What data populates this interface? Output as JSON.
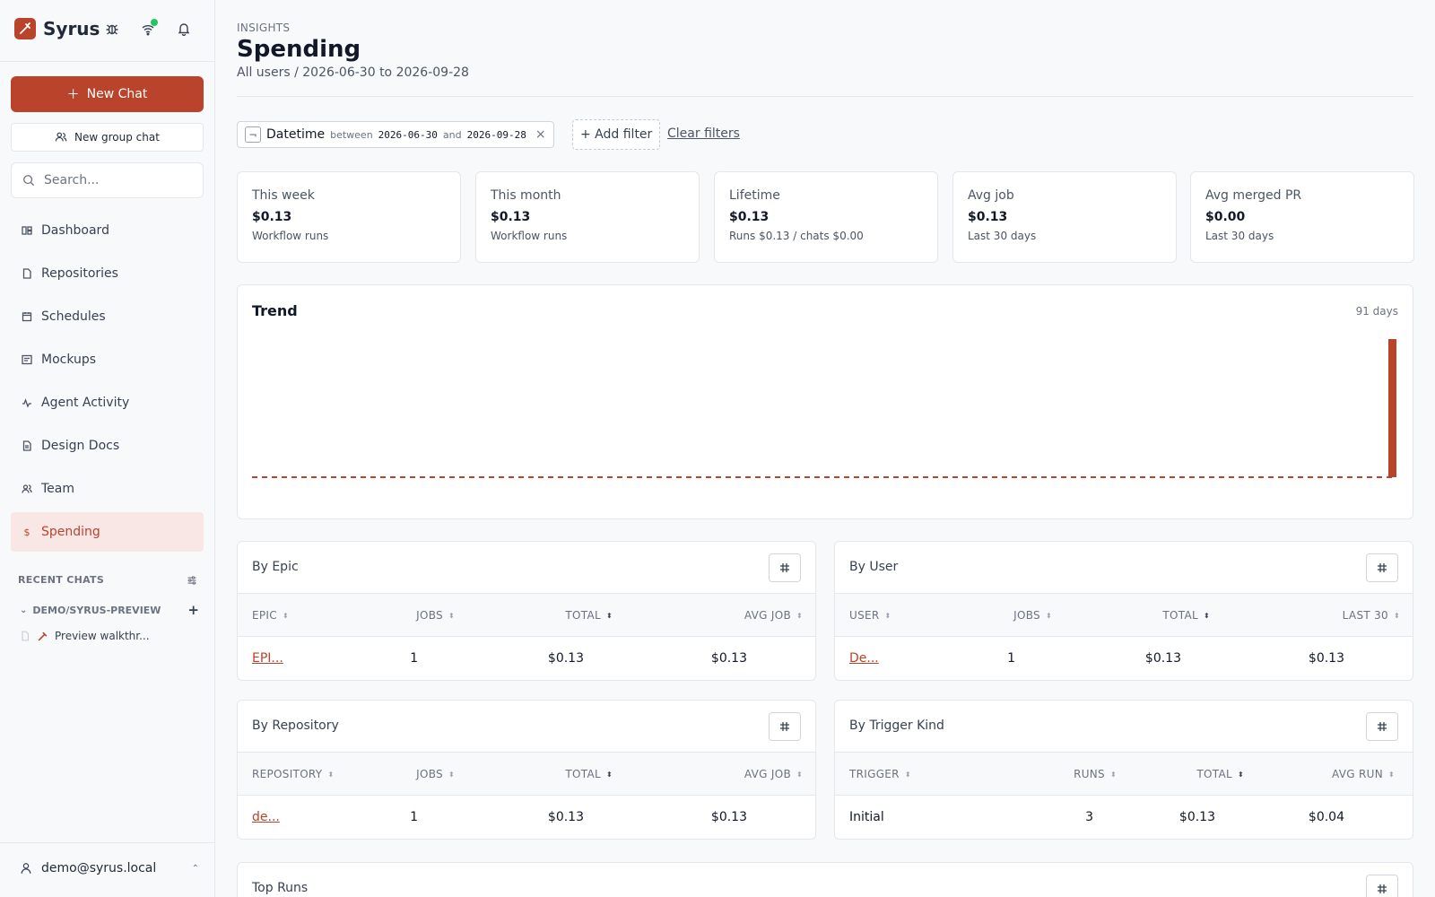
{
  "app": {
    "name": "Syrus"
  },
  "sidebar": {
    "new_chat_label": "New Chat",
    "new_group_chat_label": "New group chat",
    "search_placeholder": "Search...",
    "items": [
      {
        "label": "Dashboard",
        "icon": "dashboard-icon"
      },
      {
        "label": "Repositories",
        "icon": "file-icon"
      },
      {
        "label": "Schedules",
        "icon": "calendar-icon"
      },
      {
        "label": "Mockups",
        "icon": "mockup-icon"
      },
      {
        "label": "Agent Activity",
        "icon": "activity-icon"
      },
      {
        "label": "Design Docs",
        "icon": "document-icon"
      },
      {
        "label": "Team",
        "icon": "users-icon"
      },
      {
        "label": "Spending",
        "icon": "dollar-icon",
        "active": true
      }
    ],
    "recent_chats_label": "RECENT CHATS",
    "repo_group_label": "DEMO/SYRUS-PREVIEW",
    "chats": [
      {
        "label": "Preview walkthr..."
      }
    ],
    "user_email": "demo@syrus.local"
  },
  "header": {
    "eyebrow": "INSIGHTS",
    "title": "Spending",
    "subtitle": "All users / 2026-06-30 to 2026-09-28"
  },
  "filters": {
    "chip": {
      "field": "Datetime",
      "op1": "between",
      "start": "2026-06-30",
      "op2": "and",
      "end": "2026-09-28"
    },
    "add_label": "+ Add filter",
    "clear_label": "Clear filters"
  },
  "stats": [
    {
      "label": "This week",
      "value": "$0.13",
      "sub": "Workflow runs"
    },
    {
      "label": "This month",
      "value": "$0.13",
      "sub": "Workflow runs"
    },
    {
      "label": "Lifetime",
      "value": "$0.13",
      "sub": "Runs $0.13 / chats $0.00"
    },
    {
      "label": "Avg job",
      "value": "$0.13",
      "sub": "Last 30 days"
    },
    {
      "label": "Avg merged PR",
      "value": "$0.00",
      "sub": "Last 30 days"
    }
  ],
  "trend": {
    "title": "Trend",
    "days_label": "91 days",
    "chart_data": {
      "type": "bar",
      "days": 91,
      "values_nonzero": [
        {
          "day_index": 90,
          "value": 0.13
        }
      ],
      "baseline": "dashed",
      "accent": "#b9432b"
    }
  },
  "tables": {
    "by_epic": {
      "title": "By Epic",
      "columns": [
        "EPIC",
        "JOBS",
        "TOTAL",
        "AVG JOB"
      ],
      "rows": [
        [
          "EPI...",
          "1",
          "$0.13",
          "$0.13"
        ]
      ]
    },
    "by_user": {
      "title": "By User",
      "columns": [
        "USER",
        "JOBS",
        "TOTAL",
        "LAST 30"
      ],
      "rows": [
        [
          "De...",
          "1",
          "$0.13",
          "$0.13"
        ]
      ]
    },
    "by_repository": {
      "title": "By Repository",
      "columns": [
        "REPOSITORY",
        "JOBS",
        "TOTAL",
        "AVG JOB"
      ],
      "rows": [
        [
          "de...",
          "1",
          "$0.13",
          "$0.13"
        ]
      ]
    },
    "by_trigger": {
      "title": "By Trigger Kind",
      "columns": [
        "TRIGGER",
        "RUNS",
        "TOTAL",
        "AVG RUN"
      ],
      "rows": [
        [
          "Initial",
          "3",
          "$0.13",
          "$0.04"
        ]
      ]
    }
  },
  "top_runs": {
    "title": "Top Runs"
  },
  "colors": {
    "accent": "#b9432b",
    "accent_soft": "#f9e7e5",
    "online": "#22c55e"
  }
}
